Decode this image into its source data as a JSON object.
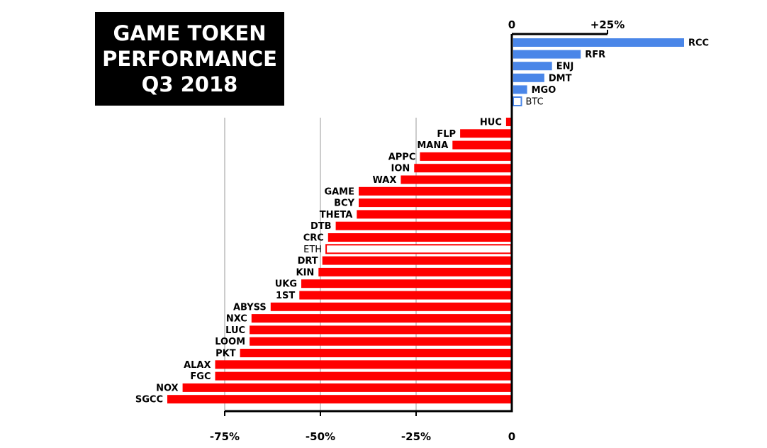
{
  "title_lines": [
    "GAME TOKEN",
    "PERFORMANCE",
    "Q3 2018"
  ],
  "colors": {
    "positive": "#4a86e8",
    "negative": "#ff0000",
    "axis": "#000000",
    "grid": "#999999"
  },
  "chart_data": {
    "type": "bar",
    "orientation": "horizontal",
    "title": "GAME TOKEN PERFORMANCE Q3 2018",
    "xlim": [
      -90,
      46
    ],
    "top_ticks": [
      {
        "value": 0,
        "label": "0"
      },
      {
        "value": 25,
        "label": "+25%"
      }
    ],
    "bottom_ticks": [
      {
        "value": -75,
        "label": "-75%"
      },
      {
        "value": -50,
        "label": "-50%"
      },
      {
        "value": -25,
        "label": "-25%"
      },
      {
        "value": 0,
        "label": "0"
      }
    ],
    "grid_x": [
      -75,
      -50,
      -25
    ],
    "categories": [
      "RCC",
      "RFR",
      "ENJ",
      "DMT",
      "MGO",
      "BTC",
      "HUC",
      "FLP",
      "MANA",
      "APPC",
      "ION",
      "WAX",
      "GAME",
      "BCY",
      "THETA",
      "DTB",
      "CRC",
      "ETH",
      "DRT",
      "KIN",
      "UKG",
      "1ST",
      "ABYSS",
      "NXC",
      "LUC",
      "LOOM",
      "PKT",
      "ALAX",
      "FGC",
      "NOX",
      "SGCC"
    ],
    "values": [
      45,
      18,
      10.5,
      8.5,
      4,
      2.5,
      -1.5,
      -13.5,
      -15.5,
      -24,
      -25.5,
      -29,
      -40,
      -40,
      -40.5,
      -46,
      -48,
      -48.5,
      -49.5,
      -50.5,
      -55,
      -55.5,
      -63,
      -68,
      -68.5,
      -68.5,
      -71,
      -77.5,
      -77.5,
      -86,
      -90
    ],
    "reference_categories": [
      "BTC",
      "ETH"
    ]
  }
}
